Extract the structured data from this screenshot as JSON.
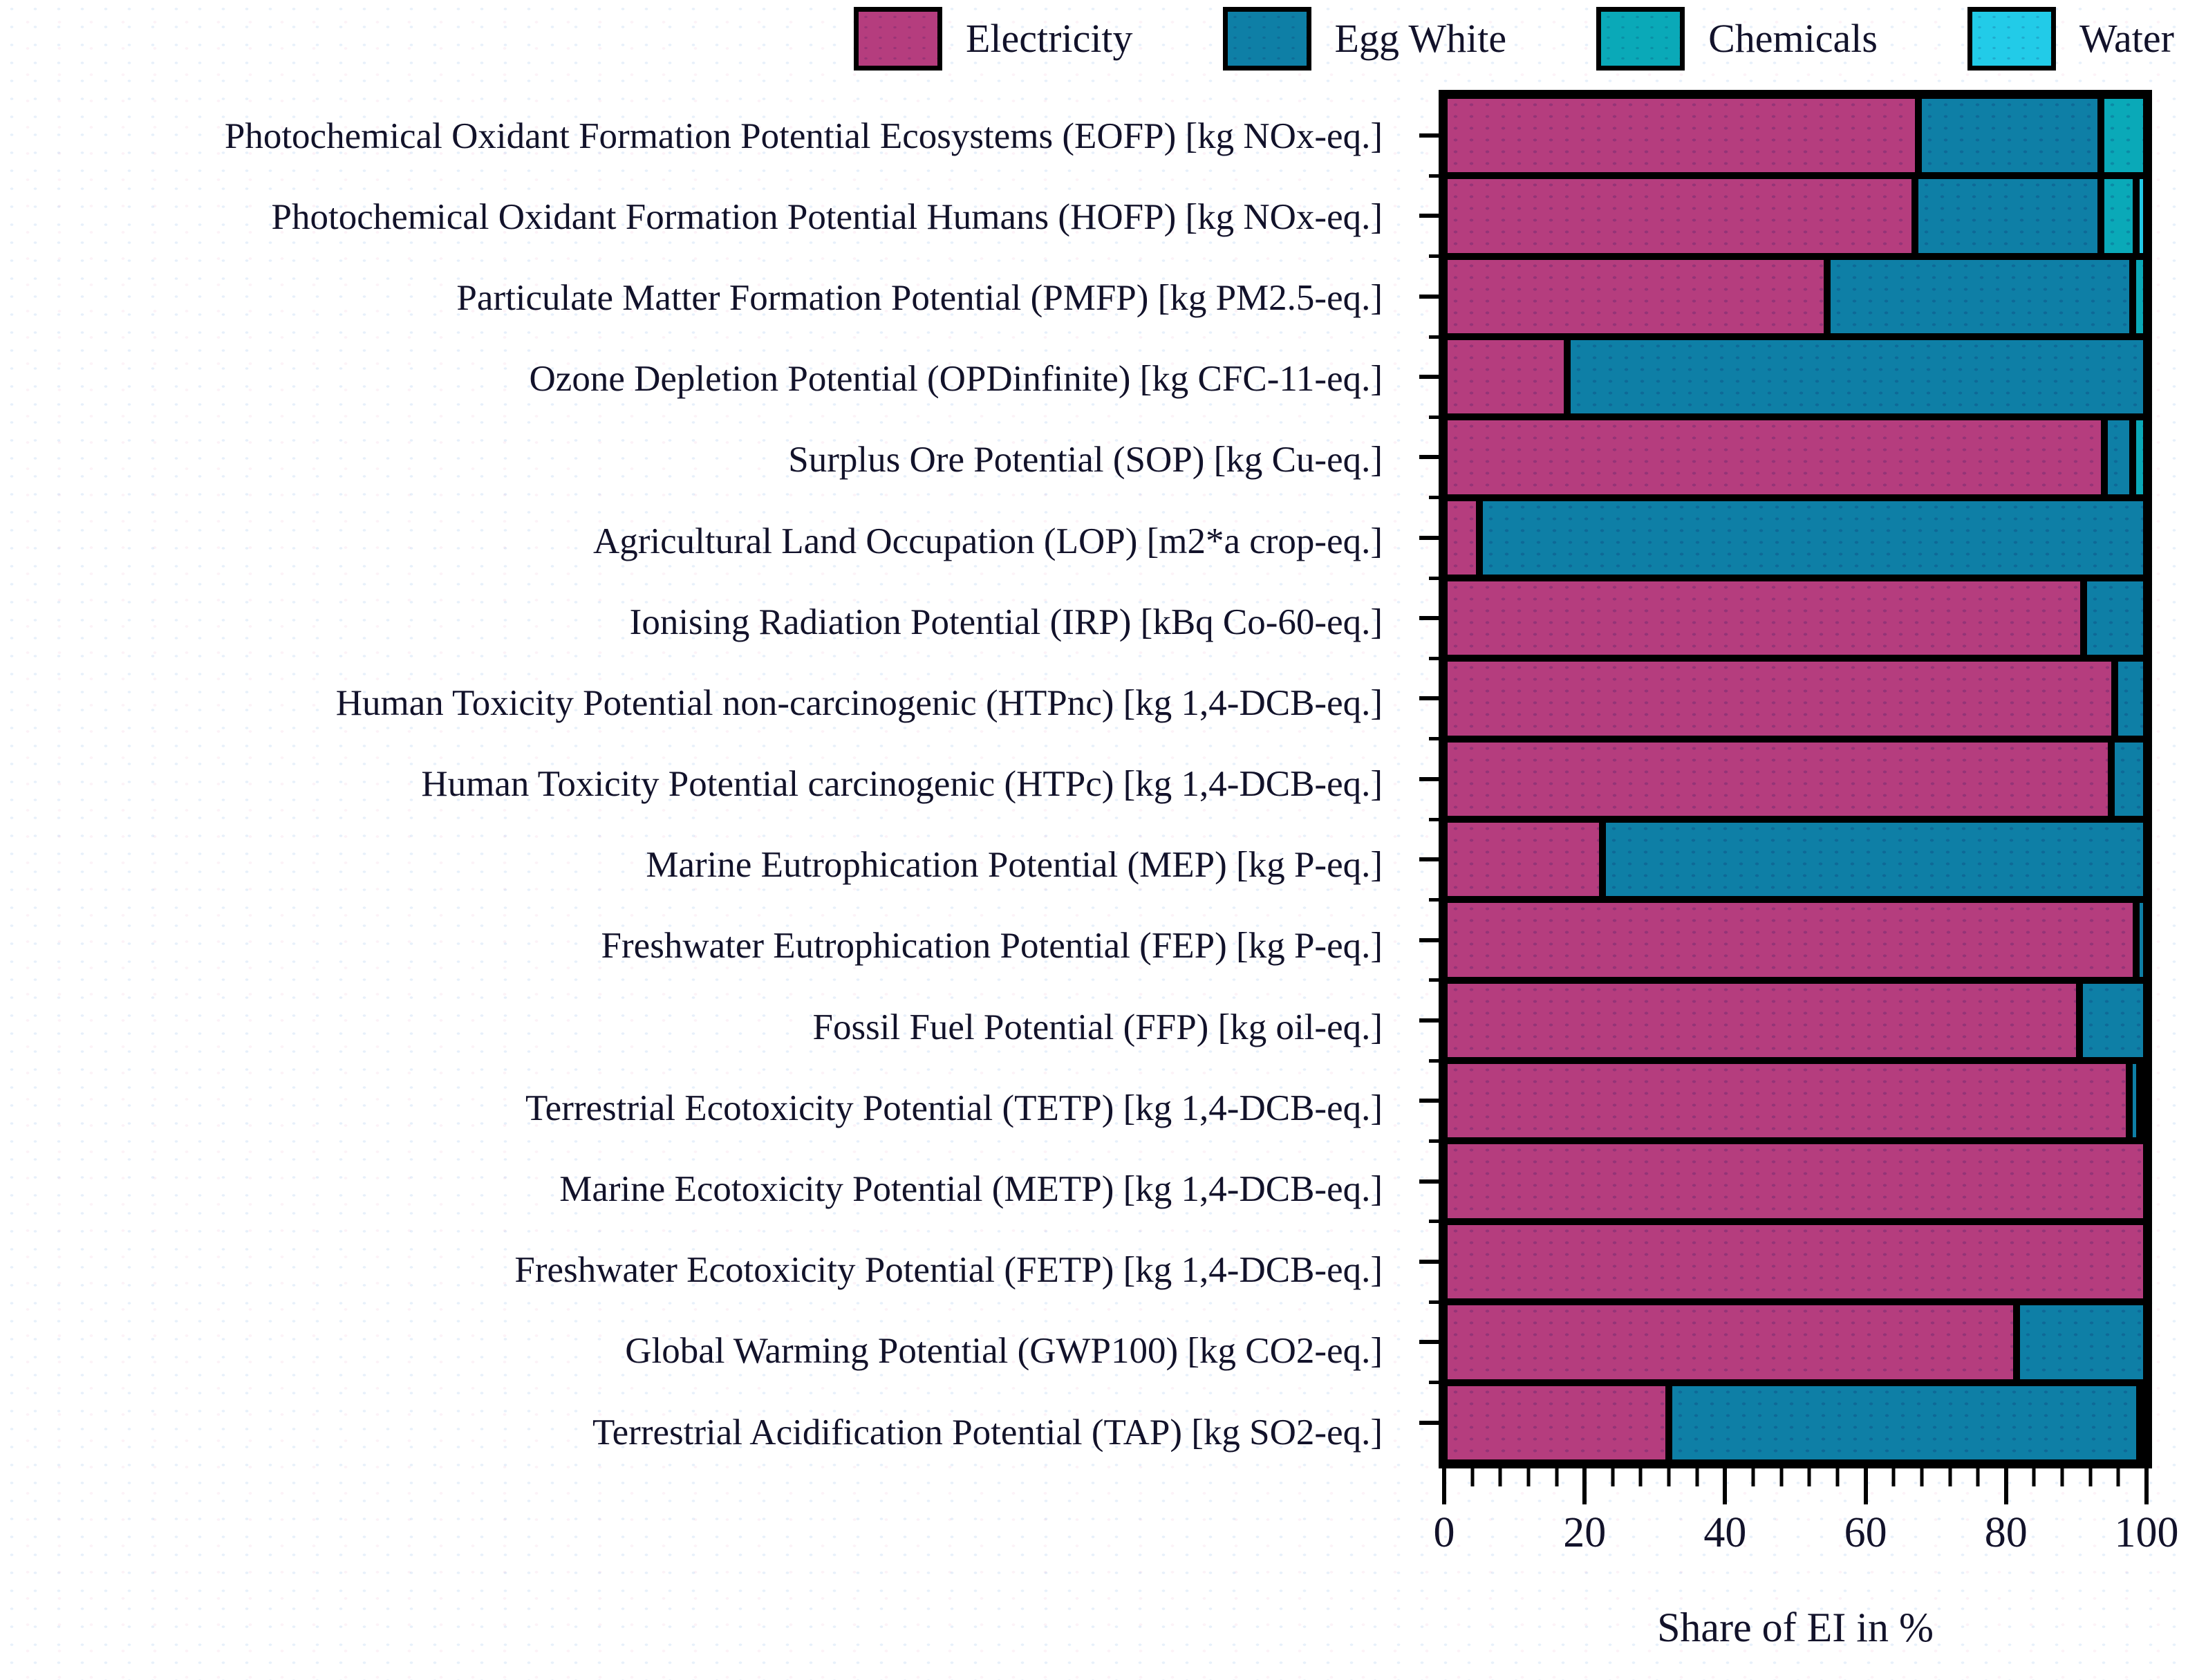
{
  "chart_data": {
    "type": "bar",
    "orientation": "horizontal",
    "stacked": true,
    "unit": "%",
    "xlabel": "Share of EI in %",
    "xlim": [
      0,
      100
    ],
    "x_major_ticks": [
      0,
      20,
      40,
      60,
      80,
      100
    ],
    "x_minor_tick_step": 4,
    "legend_position": "top-right",
    "grid": false,
    "series": [
      {
        "name": "Electricity",
        "color": "#b53d7e"
      },
      {
        "name": "Egg White",
        "color": "#0e7fa6"
      },
      {
        "name": "Chemicals",
        "color": "#0aa9b8"
      },
      {
        "name": "Water",
        "color": "#22cbe8"
      }
    ],
    "categories": [
      "Photochemical Oxidant Formation Potential Ecosystems (EOFP) [kg NOx-eq.]",
      "Photochemical Oxidant Formation Potential Humans (HOFP) [kg NOx-eq.]",
      "Particulate Matter Formation Potential (PMFP) [kg PM2.5-eq.]",
      "Ozone Depletion Potential (OPDinfinite) [kg CFC-11-eq.]",
      "Surplus Ore Potential (SOP) [kg Cu-eq.]",
      "Agricultural Land Occupation (LOP) [m2*a crop-eq.]",
      "Ionising Radiation Potential (IRP) [kBq Co-60-eq.]",
      "Human Toxicity Potential non-carcinogenic (HTPnc) [kg 1,4-DCB-eq.]",
      "Human Toxicity Potential carcinogenic (HTPc) [kg 1,4-DCB-eq.]",
      "Marine Eutrophication Potential (MEP) [kg P-eq.]",
      "Freshwater Eutrophication Potential (FEP) [kg P-eq.]",
      "Fossil Fuel Potential (FFP) [kg oil-eq.]",
      "Terrestrial Ecotoxicity Potential (TETP) [kg 1,4-DCB-eq.]",
      "Marine Ecotoxicity Potential (METP) [kg 1,4-DCB-eq.]",
      "Freshwater Ecotoxicity Potential (FETP) [kg 1,4-DCB-eq.]",
      "Global Warming Potential (GWP100) [kg CO2-eq.]",
      "Terrestrial Acidification Potential (TAP) [kg SO2-eq.]"
    ],
    "values": [
      [
        67.5,
        26.0,
        6.5,
        0
      ],
      [
        67.0,
        26.5,
        5.0,
        1.5
      ],
      [
        54.5,
        43.5,
        2.0,
        0
      ],
      [
        17.5,
        82.5,
        0,
        0
      ],
      [
        94.0,
        4.0,
        2.0,
        0
      ],
      [
        5.0,
        95.0,
        0,
        0
      ],
      [
        91.0,
        9.0,
        0,
        0
      ],
      [
        95.5,
        4.5,
        0,
        0
      ],
      [
        95.0,
        5.0,
        0,
        0
      ],
      [
        22.5,
        77.5,
        0,
        0
      ],
      [
        98.5,
        1.5,
        0,
        0
      ],
      [
        90.5,
        9.5,
        0,
        0
      ],
      [
        97.5,
        1.5,
        1.0,
        0
      ],
      [
        100.0,
        0,
        0,
        0
      ],
      [
        100.0,
        0,
        0,
        0
      ],
      [
        81.5,
        18.5,
        0,
        0
      ],
      [
        32.0,
        67.0,
        1.0,
        0
      ]
    ]
  }
}
